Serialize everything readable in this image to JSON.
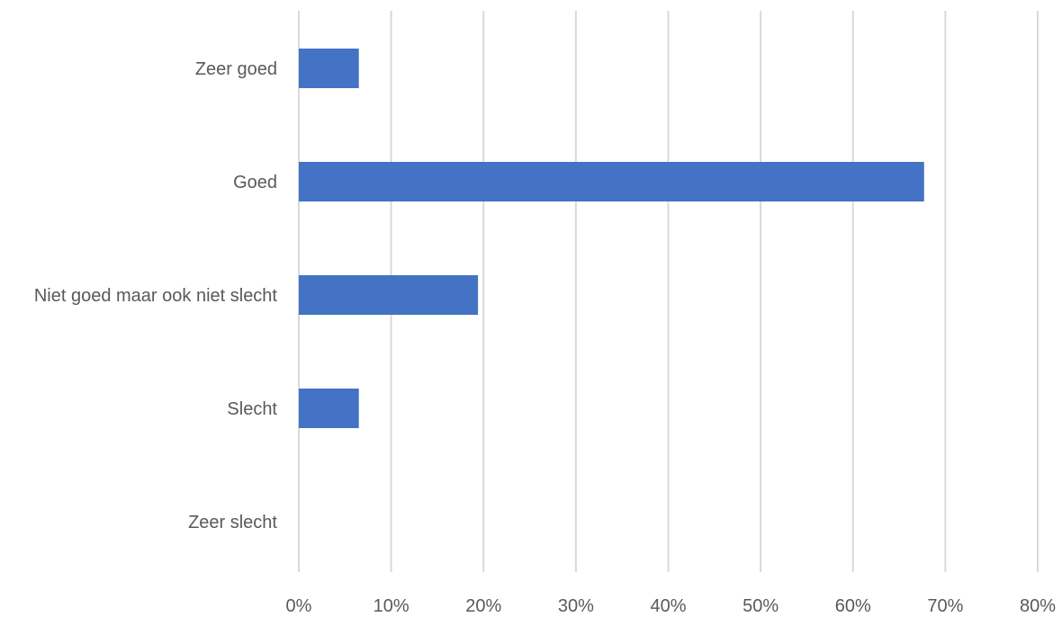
{
  "chart_data": {
    "type": "bar",
    "orientation": "horizontal",
    "categories": [
      "Zeer goed",
      "Goed",
      "Niet goed maar ook niet slecht",
      "Slecht",
      "Zeer slecht"
    ],
    "values": [
      0.065,
      0.677,
      0.194,
      0.065,
      0.0
    ],
    "x_ticks": [
      "0%",
      "10%",
      "20%",
      "30%",
      "40%",
      "50%",
      "60%",
      "70%",
      "80%"
    ],
    "xlim": [
      0,
      0.8
    ],
    "grid": "vertical",
    "legend": "none",
    "bar_color": "#4472C4",
    "grid_color": "#D9D9D9",
    "text_color": "#595959"
  }
}
